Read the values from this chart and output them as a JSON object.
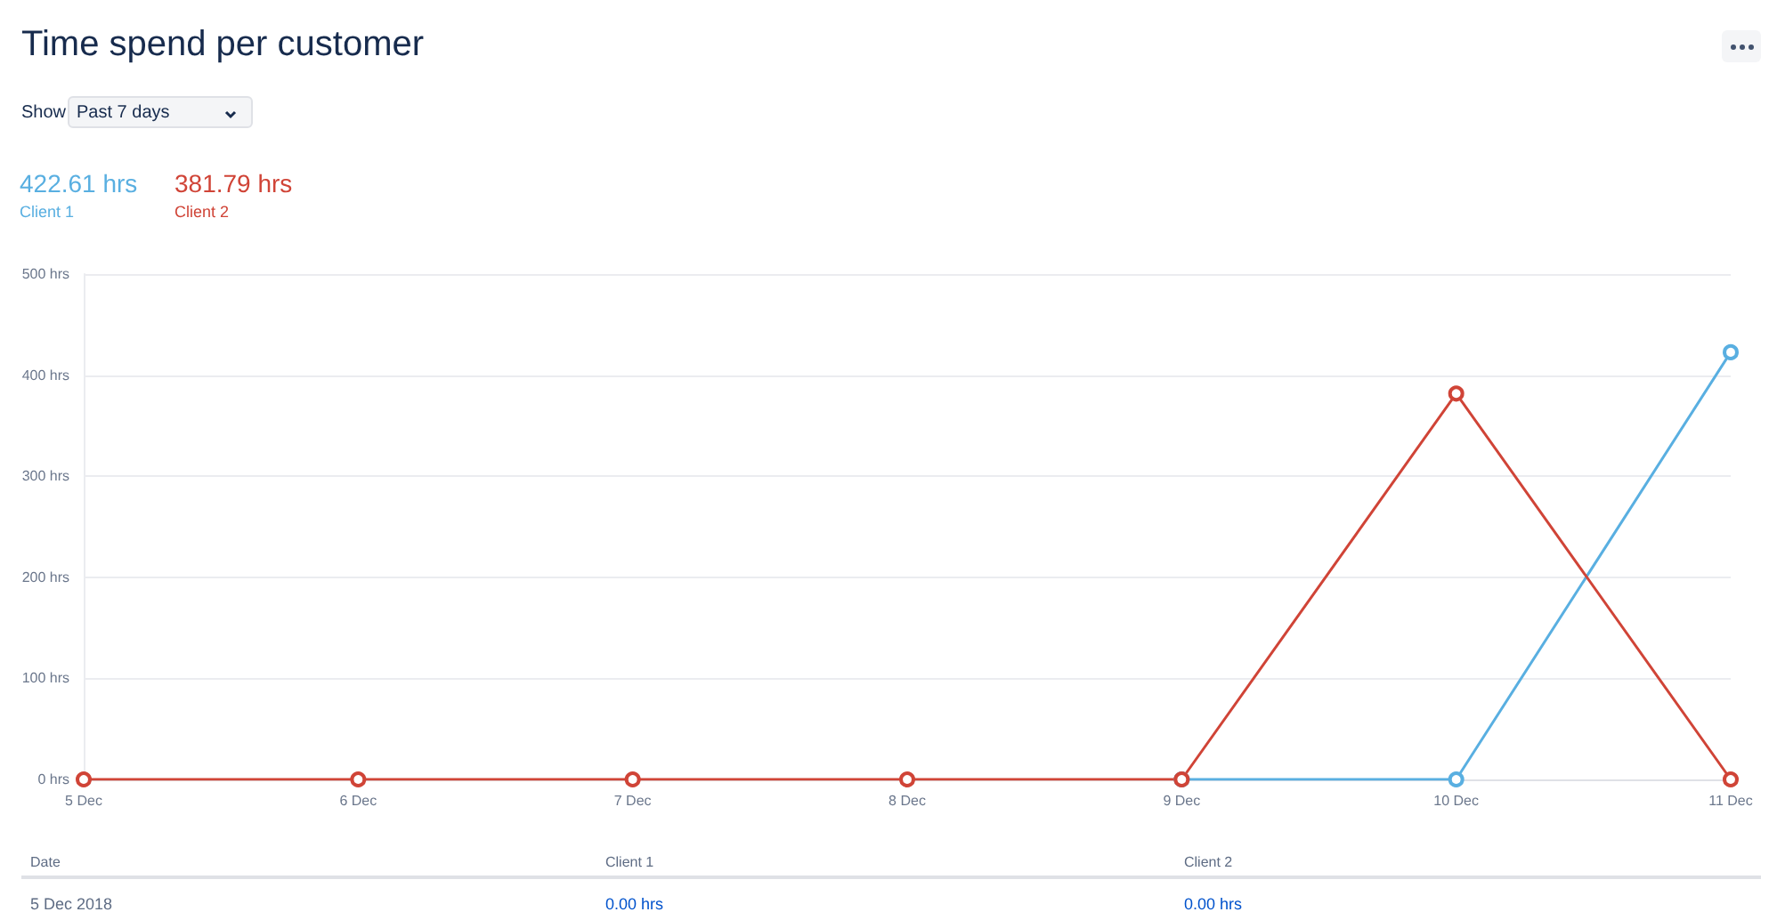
{
  "chart_data": {
    "type": "line",
    "title": "Time spend per customer",
    "categories": [
      "5 Dec",
      "6 Dec",
      "7 Dec",
      "8 Dec",
      "9 Dec",
      "10 Dec",
      "11 Dec"
    ],
    "series": [
      {
        "name": "Client 1",
        "color": "#59afe1",
        "values": [
          null,
          null,
          null,
          null,
          0,
          0,
          422.61
        ]
      },
      {
        "name": "Client 2",
        "color": "#d04437",
        "values": [
          0,
          0,
          0,
          0,
          0,
          381.79,
          0
        ]
      }
    ],
    "ylim": [
      0,
      500
    ],
    "yticks": [
      {
        "value": 0,
        "label": "0 hrs"
      },
      {
        "value": 100,
        "label": "100 hrs"
      },
      {
        "value": 200,
        "label": "200 hrs"
      },
      {
        "value": 300,
        "label": "300 hrs"
      },
      {
        "value": 400,
        "label": "400 hrs"
      },
      {
        "value": 500,
        "label": "500 hrs"
      }
    ],
    "grid": "y",
    "marker": "circle",
    "line_style": "solid",
    "legend": "top left",
    "annotations": [
      "Show",
      "Past 7 days",
      "422.61 hrs",
      "381.79 hrs",
      "Date",
      "5 Dec 2018",
      "0.00 hrs",
      "0.00 hrs",
      "Client 1",
      "Client 2"
    ]
  }
}
